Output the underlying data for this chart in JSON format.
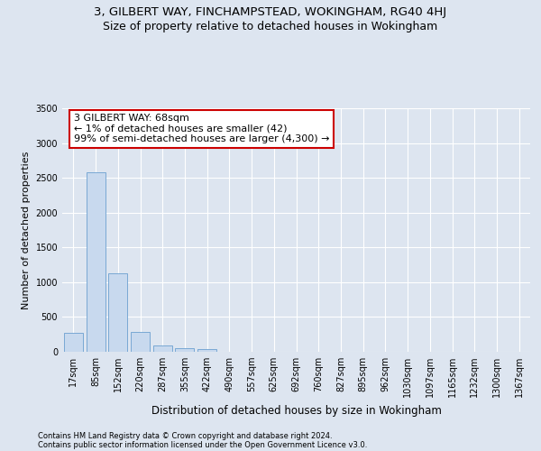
{
  "title1": "3, GILBERT WAY, FINCHAMPSTEAD, WOKINGHAM, RG40 4HJ",
  "title2": "Size of property relative to detached houses in Wokingham",
  "xlabel": "Distribution of detached houses by size in Wokingham",
  "ylabel": "Number of detached properties",
  "categories": [
    "17sqm",
    "85sqm",
    "152sqm",
    "220sqm",
    "287sqm",
    "355sqm",
    "422sqm",
    "490sqm",
    "557sqm",
    "625sqm",
    "692sqm",
    "760sqm",
    "827sqm",
    "895sqm",
    "962sqm",
    "1030sqm",
    "1097sqm",
    "1165sqm",
    "1232sqm",
    "1300sqm",
    "1367sqm"
  ],
  "values": [
    270,
    2580,
    1130,
    285,
    90,
    55,
    35,
    0,
    0,
    0,
    0,
    0,
    0,
    0,
    0,
    0,
    0,
    0,
    0,
    0,
    0
  ],
  "bar_color": "#c8d9ee",
  "bar_edge_color": "#6a9fd0",
  "annotation_text": "3 GILBERT WAY: 68sqm\n← 1% of detached houses are smaller (42)\n99% of semi-detached houses are larger (4,300) →",
  "annotation_box_color": "#ffffff",
  "annotation_border_color": "#cc0000",
  "ylim": [
    0,
    3500
  ],
  "yticks": [
    0,
    500,
    1000,
    1500,
    2000,
    2500,
    3000,
    3500
  ],
  "footer1": "Contains HM Land Registry data © Crown copyright and database right 2024.",
  "footer2": "Contains public sector information licensed under the Open Government Licence v3.0.",
  "bg_color": "#dde5f0",
  "plot_bg_color": "#dde5f0",
  "title1_fontsize": 9.5,
  "title2_fontsize": 9,
  "grid_color": "#ffffff",
  "annot_fontsize": 8,
  "ylabel_fontsize": 8,
  "xlabel_fontsize": 8.5,
  "tick_fontsize": 7
}
